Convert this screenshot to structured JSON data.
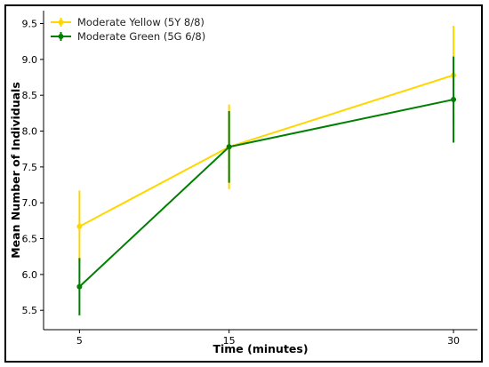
{
  "chart_data": {
    "type": "line",
    "title": "",
    "xlabel": "Time (minutes)",
    "ylabel": "Mean Number of Individuals",
    "x": [
      5,
      15,
      30
    ],
    "xlim": [
      2.6,
      31.6
    ],
    "ylim": [
      5.23,
      9.68
    ],
    "yticks": [
      5.5,
      6.0,
      6.5,
      7.0,
      7.5,
      8.0,
      8.5,
      9.0,
      9.5
    ],
    "xticks": [
      5,
      15,
      30
    ],
    "grid": false,
    "legend_position": "top-left",
    "series": [
      {
        "name": "Moderate Yellow (5Y 8/8)",
        "color": "#FFD700",
        "values": [
          6.67,
          7.78,
          8.78
        ],
        "errors": [
          0.5,
          0.59,
          0.69
        ]
      },
      {
        "name": "Moderate Green (5G 6/8)",
        "color": "#008000",
        "values": [
          5.83,
          7.78,
          8.44
        ],
        "errors": [
          0.4,
          0.5,
          0.6
        ]
      }
    ]
  }
}
